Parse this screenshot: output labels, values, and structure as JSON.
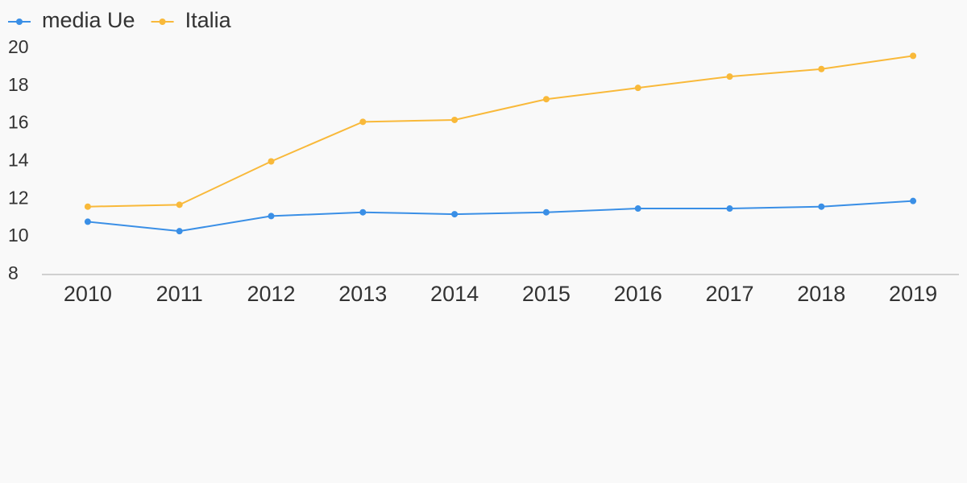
{
  "chart_data": {
    "type": "line",
    "categories": [
      "2010",
      "2011",
      "2012",
      "2013",
      "2014",
      "2015",
      "2016",
      "2017",
      "2018",
      "2019"
    ],
    "series": [
      {
        "name": "media Ue",
        "color": "#3a8fe6",
        "values": [
          10.8,
          10.3,
          11.1,
          11.3,
          11.2,
          11.3,
          11.5,
          11.5,
          11.6,
          11.9
        ]
      },
      {
        "name": "Italia",
        "color": "#f9b93a",
        "values": [
          11.6,
          11.7,
          14.0,
          16.1,
          16.2,
          17.3,
          17.9,
          18.5,
          18.9,
          19.6
        ]
      }
    ],
    "ylim": [
      8,
      20
    ],
    "yticks": [
      8,
      10,
      12,
      14,
      16,
      18,
      20
    ],
    "grid": false,
    "legend": "top-left"
  }
}
